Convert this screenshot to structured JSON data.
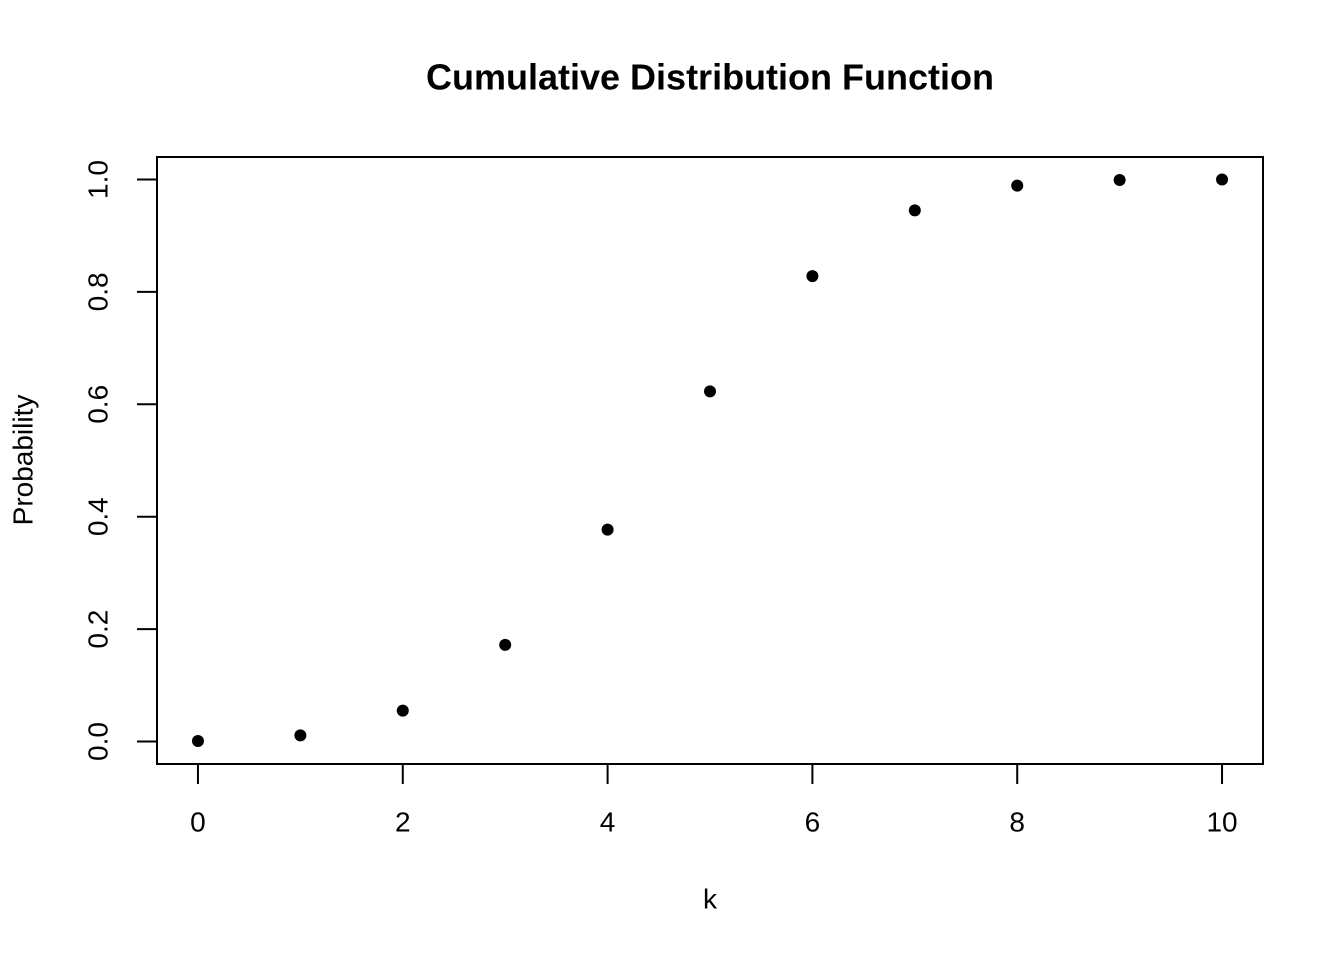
{
  "chart_data": {
    "type": "scatter",
    "title": "Cumulative Distribution Function",
    "x_label": "k",
    "y_label": "Probability",
    "x": [
      0,
      1,
      2,
      3,
      4,
      5,
      6,
      7,
      8,
      9,
      10
    ],
    "values": [
      0.001,
      0.011,
      0.055,
      0.172,
      0.377,
      0.623,
      0.828,
      0.945,
      0.989,
      0.999,
      1.0
    ],
    "color": "#000000",
    "xlim": [
      -0.4,
      10.4
    ],
    "xticks": [
      0,
      2,
      4,
      6,
      8,
      10
    ],
    "ylim": [
      -0.04,
      1.04
    ],
    "yticks": [
      {
        "value": 0,
        "label": "0.0"
      },
      {
        "value": 0.2,
        "label": "0.2"
      },
      {
        "value": 0.4,
        "label": "0.4"
      },
      {
        "value": 0.6,
        "label": "0.6"
      },
      {
        "value": 0.8,
        "label": "0.8"
      },
      {
        "value": 1,
        "label": "1.0"
      }
    ],
    "grid": false
  }
}
